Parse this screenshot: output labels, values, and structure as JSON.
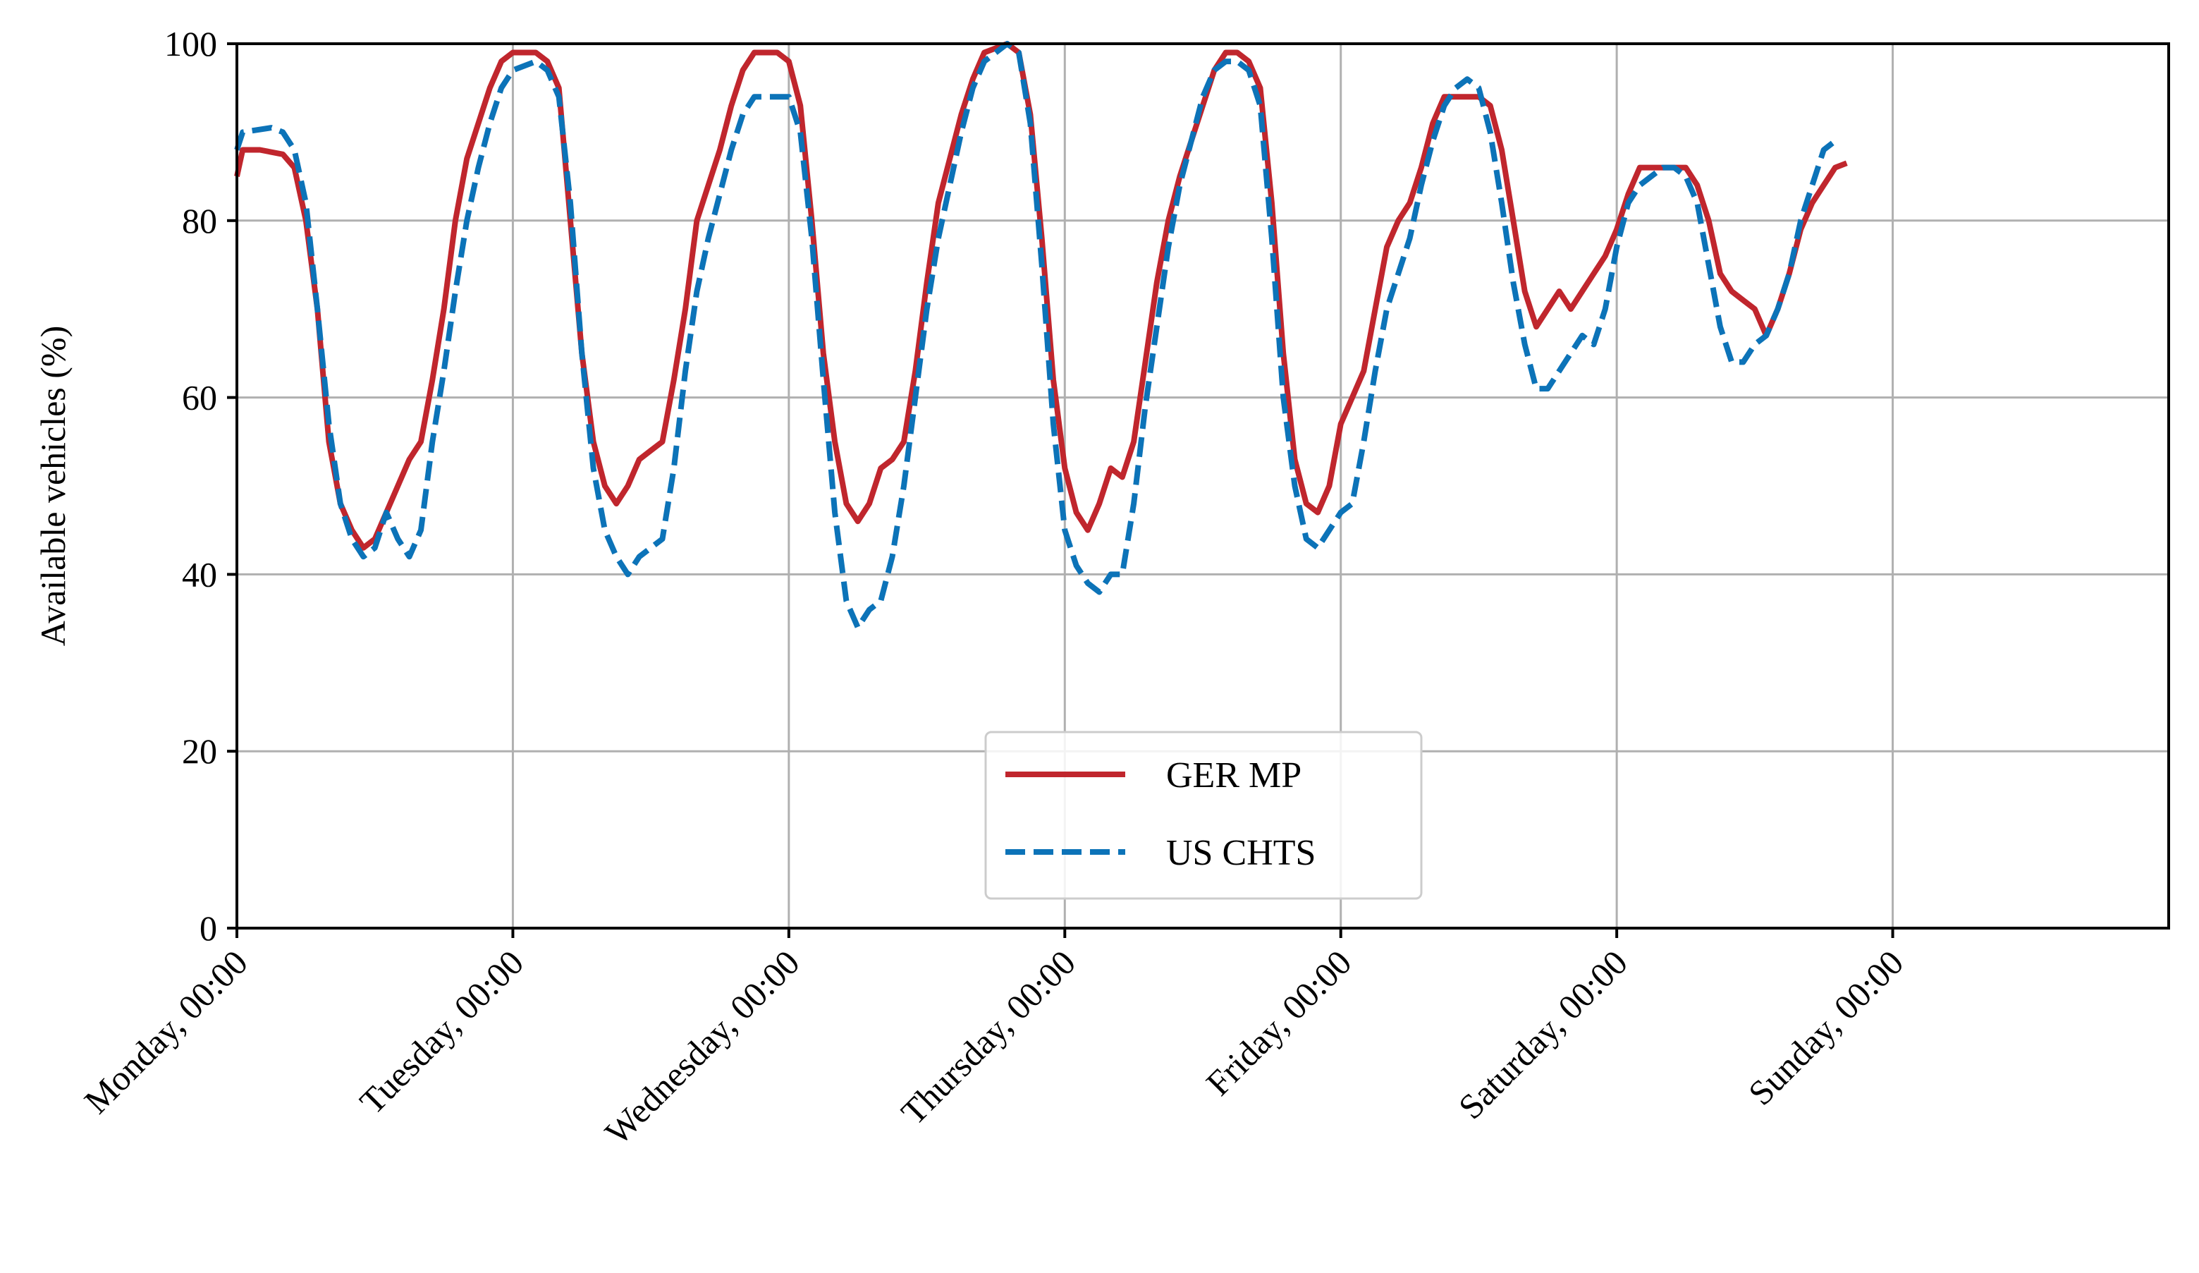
{
  "chart_data": {
    "type": "line",
    "title": "",
    "xlabel": "",
    "ylabel": "Available vehicles (%)",
    "ylim": [
      0,
      100
    ],
    "xlim_hours": [
      0,
      168
    ],
    "yticks": [
      "0",
      "20",
      "40",
      "60",
      "80",
      "100"
    ],
    "ytick_values": [
      0,
      20,
      40,
      60,
      80,
      100
    ],
    "xtick_hours": [
      0,
      24,
      48,
      72,
      96,
      120,
      144
    ],
    "xtick_labels": [
      "Monday, 00:00",
      "Tuesday, 00:00",
      "Wednesday, 00:00",
      "Thursday, 00:00",
      "Friday, 00:00",
      "Saturday, 00:00",
      "Sunday, 00:00"
    ],
    "grid": true,
    "legend_position": "lower-center",
    "series": [
      {
        "name": "GER MP",
        "color": "#c0262d",
        "style": "solid",
        "points": [
          [
            0,
            85
          ],
          [
            0.5,
            88
          ],
          [
            2,
            88
          ],
          [
            4,
            87.5
          ],
          [
            5,
            86
          ],
          [
            6,
            80
          ],
          [
            7,
            70
          ],
          [
            8,
            55
          ],
          [
            9,
            48
          ],
          [
            10,
            45
          ],
          [
            11,
            43
          ],
          [
            12,
            44
          ],
          [
            13,
            47
          ],
          [
            14,
            50
          ],
          [
            15,
            53
          ],
          [
            16,
            55
          ],
          [
            17,
            62
          ],
          [
            18,
            70
          ],
          [
            19,
            80
          ],
          [
            20,
            87
          ],
          [
            21,
            91
          ],
          [
            22,
            95
          ],
          [
            23,
            98
          ],
          [
            24,
            99
          ],
          [
            26,
            99
          ],
          [
            27,
            98
          ],
          [
            28,
            95
          ],
          [
            29,
            80
          ],
          [
            30,
            65
          ],
          [
            31,
            55
          ],
          [
            32,
            50
          ],
          [
            33,
            48
          ],
          [
            34,
            50
          ],
          [
            35,
            53
          ],
          [
            36,
            54
          ],
          [
            37,
            55
          ],
          [
            38,
            62
          ],
          [
            39,
            70
          ],
          [
            40,
            80
          ],
          [
            41,
            84
          ],
          [
            42,
            88
          ],
          [
            43,
            93
          ],
          [
            44,
            97
          ],
          [
            45,
            99
          ],
          [
            47,
            99
          ],
          [
            48,
            98
          ],
          [
            49,
            93
          ],
          [
            50,
            80
          ],
          [
            51,
            65
          ],
          [
            52,
            55
          ],
          [
            53,
            48
          ],
          [
            54,
            46
          ],
          [
            55,
            48
          ],
          [
            56,
            52
          ],
          [
            57,
            53
          ],
          [
            58,
            55
          ],
          [
            59,
            63
          ],
          [
            60,
            73
          ],
          [
            61,
            82
          ],
          [
            62,
            87
          ],
          [
            63,
            92
          ],
          [
            64,
            96
          ],
          [
            65,
            99
          ],
          [
            67,
            100
          ],
          [
            68,
            99
          ],
          [
            69,
            92
          ],
          [
            70,
            78
          ],
          [
            71,
            62
          ],
          [
            72,
            52
          ],
          [
            73,
            47
          ],
          [
            74,
            45
          ],
          [
            75,
            48
          ],
          [
            76,
            52
          ],
          [
            77,
            51
          ],
          [
            78,
            55
          ],
          [
            79,
            64
          ],
          [
            80,
            73
          ],
          [
            81,
            80
          ],
          [
            82,
            85
          ],
          [
            83,
            89
          ],
          [
            84,
            93
          ],
          [
            85,
            97
          ],
          [
            86,
            99
          ],
          [
            87,
            99
          ],
          [
            88,
            98
          ],
          [
            89,
            95
          ],
          [
            90,
            82
          ],
          [
            91,
            65
          ],
          [
            92,
            53
          ],
          [
            93,
            48
          ],
          [
            94,
            47
          ],
          [
            95,
            50
          ],
          [
            96,
            57
          ],
          [
            97,
            60
          ],
          [
            98,
            63
          ],
          [
            99,
            70
          ],
          [
            100,
            77
          ],
          [
            101,
            80
          ],
          [
            102,
            82
          ],
          [
            103,
            86
          ],
          [
            104,
            91
          ],
          [
            105,
            94
          ],
          [
            107,
            94
          ],
          [
            108,
            94
          ],
          [
            109,
            93
          ],
          [
            110,
            88
          ],
          [
            111,
            80
          ],
          [
            112,
            72
          ],
          [
            113,
            68
          ],
          [
            114,
            70
          ],
          [
            115,
            72
          ],
          [
            116,
            70
          ],
          [
            117,
            72
          ],
          [
            118,
            74
          ],
          [
            119,
            76
          ],
          [
            120,
            79
          ],
          [
            121,
            83
          ],
          [
            122,
            86
          ],
          [
            123,
            86
          ],
          [
            124,
            86
          ],
          [
            125,
            86
          ],
          [
            126,
            86
          ],
          [
            127,
            84
          ],
          [
            128,
            80
          ],
          [
            129,
            74
          ],
          [
            130,
            72
          ],
          [
            131,
            71
          ],
          [
            132,
            70
          ],
          [
            133,
            67
          ],
          [
            134,
            70
          ],
          [
            135,
            74
          ],
          [
            136,
            79
          ],
          [
            137,
            82
          ],
          [
            138,
            84
          ],
          [
            139,
            86
          ],
          [
            140,
            86.5
          ]
        ]
      },
      {
        "name": "US CHTS",
        "color": "#0c73b8",
        "style": "dashed",
        "points": [
          [
            0,
            88
          ],
          [
            0.5,
            90
          ],
          [
            3,
            90.5
          ],
          [
            4,
            90
          ],
          [
            5,
            88
          ],
          [
            6,
            82
          ],
          [
            7,
            70
          ],
          [
            8,
            57
          ],
          [
            9,
            48
          ],
          [
            10,
            44
          ],
          [
            11,
            42
          ],
          [
            12,
            43
          ],
          [
            13,
            47
          ],
          [
            14,
            44
          ],
          [
            15,
            42
          ],
          [
            16,
            45
          ],
          [
            17,
            55
          ],
          [
            18,
            63
          ],
          [
            19,
            72
          ],
          [
            20,
            80
          ],
          [
            21,
            86
          ],
          [
            22,
            91
          ],
          [
            23,
            95
          ],
          [
            24,
            97
          ],
          [
            26,
            98
          ],
          [
            27,
            97
          ],
          [
            28,
            94
          ],
          [
            29,
            82
          ],
          [
            30,
            65
          ],
          [
            31,
            52
          ],
          [
            32,
            45
          ],
          [
            33,
            42
          ],
          [
            34,
            40
          ],
          [
            35,
            42
          ],
          [
            36,
            43
          ],
          [
            37,
            44
          ],
          [
            38,
            52
          ],
          [
            39,
            63
          ],
          [
            40,
            72
          ],
          [
            41,
            78
          ],
          [
            42,
            83
          ],
          [
            43,
            88
          ],
          [
            44,
            92
          ],
          [
            45,
            94
          ],
          [
            47,
            94
          ],
          [
            48,
            94
          ],
          [
            49,
            90
          ],
          [
            50,
            78
          ],
          [
            51,
            62
          ],
          [
            52,
            47
          ],
          [
            53,
            37
          ],
          [
            54,
            34
          ],
          [
            55,
            36
          ],
          [
            56,
            37
          ],
          [
            57,
            42
          ],
          [
            58,
            50
          ],
          [
            59,
            60
          ],
          [
            60,
            70
          ],
          [
            61,
            78
          ],
          [
            62,
            84
          ],
          [
            63,
            90
          ],
          [
            64,
            95
          ],
          [
            65,
            98
          ],
          [
            67,
            100
          ],
          [
            68,
            99
          ],
          [
            69,
            91
          ],
          [
            70,
            75
          ],
          [
            71,
            57
          ],
          [
            72,
            45
          ],
          [
            73,
            41
          ],
          [
            74,
            39
          ],
          [
            75,
            38
          ],
          [
            76,
            40
          ],
          [
            77,
            40
          ],
          [
            78,
            48
          ],
          [
            79,
            59
          ],
          [
            80,
            68
          ],
          [
            81,
            77
          ],
          [
            82,
            84
          ],
          [
            83,
            89
          ],
          [
            84,
            94
          ],
          [
            85,
            97
          ],
          [
            86,
            98
          ],
          [
            87,
            98
          ],
          [
            88,
            97
          ],
          [
            89,
            93
          ],
          [
            90,
            78
          ],
          [
            91,
            60
          ],
          [
            92,
            50
          ],
          [
            93,
            44
          ],
          [
            94,
            43
          ],
          [
            95,
            45
          ],
          [
            96,
            47
          ],
          [
            97,
            48
          ],
          [
            98,
            55
          ],
          [
            99,
            63
          ],
          [
            100,
            70
          ],
          [
            101,
            74
          ],
          [
            102,
            78
          ],
          [
            103,
            84
          ],
          [
            104,
            89
          ],
          [
            105,
            93
          ],
          [
            106,
            95
          ],
          [
            107,
            96
          ],
          [
            108,
            95
          ],
          [
            109,
            90
          ],
          [
            110,
            82
          ],
          [
            111,
            73
          ],
          [
            112,
            66
          ],
          [
            113,
            61
          ],
          [
            114,
            61
          ],
          [
            115,
            63
          ],
          [
            116,
            65
          ],
          [
            117,
            67
          ],
          [
            118,
            66
          ],
          [
            119,
            70
          ],
          [
            120,
            77
          ],
          [
            121,
            82
          ],
          [
            122,
            84
          ],
          [
            123,
            85
          ],
          [
            124,
            86
          ],
          [
            125,
            86
          ],
          [
            126,
            85
          ],
          [
            127,
            82
          ],
          [
            128,
            75
          ],
          [
            129,
            68
          ],
          [
            130,
            64
          ],
          [
            131,
            64
          ],
          [
            132,
            66
          ],
          [
            133,
            67
          ],
          [
            134,
            70
          ],
          [
            135,
            74
          ],
          [
            136,
            80
          ],
          [
            137,
            84
          ],
          [
            138,
            88
          ],
          [
            139,
            89
          ]
        ]
      }
    ]
  }
}
